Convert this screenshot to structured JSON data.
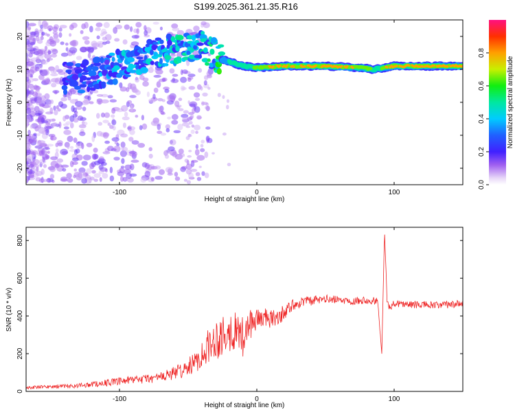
{
  "title": "S199.2025.361.21.35.R16",
  "chart_data": [
    {
      "type": "heatmap",
      "xlabel": "Height of straight line (km)",
      "ylabel": "Frequency (Hz)",
      "xlim": [
        -168,
        150
      ],
      "ylim": [
        -25,
        25
      ],
      "xticks": [
        -100,
        0,
        100
      ],
      "yticks": [
        -20,
        -10,
        0,
        10,
        20
      ],
      "colorbar": {
        "label": "Normalized spectral amplitude",
        "range": [
          0,
          1
        ],
        "ticks": [
          0.0,
          0.2,
          0.4,
          0.6,
          0.8
        ],
        "tick_labels": [
          "0.0",
          "0.2",
          "0.4",
          "0.6",
          "0.8"
        ]
      },
      "ridge": [
        {
          "x": -140,
          "y": 7,
          "a": 0.2
        },
        {
          "x": -120,
          "y": 8,
          "a": 0.25
        },
        {
          "x": -100,
          "y": 11,
          "a": 0.3
        },
        {
          "x": -80,
          "y": 14,
          "a": 0.3
        },
        {
          "x": -60,
          "y": 16,
          "a": 0.35
        },
        {
          "x": -40,
          "y": 17,
          "a": 0.35
        },
        {
          "x": -25,
          "y": 13,
          "a": 0.45
        },
        {
          "x": -10,
          "y": 11,
          "a": 0.6
        },
        {
          "x": 0,
          "y": 10.5,
          "a": 0.7
        },
        {
          "x": 20,
          "y": 11,
          "a": 0.85
        },
        {
          "x": 50,
          "y": 11,
          "a": 0.9
        },
        {
          "x": 75,
          "y": 10.5,
          "a": 0.85
        },
        {
          "x": 85,
          "y": 10,
          "a": 0.6
        },
        {
          "x": 100,
          "y": 11,
          "a": 0.85
        },
        {
          "x": 130,
          "y": 11,
          "a": 0.9
        },
        {
          "x": 150,
          "y": 11,
          "a": 0.9
        }
      ]
    },
    {
      "type": "line",
      "xlabel": "Height of straight line (km)",
      "ylabel": "SNR (10 * v/v)",
      "xlim": [
        -168,
        150
      ],
      "ylim": [
        0,
        870
      ],
      "xticks": [
        -100,
        0,
        100
      ],
      "yticks": [
        0,
        200,
        400,
        600,
        800
      ],
      "series": [
        {
          "name": "SNR",
          "color": "#ee2222",
          "x": [
            -168,
            -150,
            -130,
            -110,
            -90,
            -70,
            -55,
            -45,
            -38,
            -30,
            -25,
            -20,
            -15,
            -10,
            -5,
            0,
            5,
            10,
            15,
            20,
            25,
            30,
            40,
            50,
            60,
            70,
            80,
            88,
            91,
            93,
            95,
            97,
            100,
            110,
            120,
            130,
            140,
            150
          ],
          "y": [
            20,
            25,
            30,
            45,
            60,
            75,
            110,
            150,
            220,
            280,
            300,
            320,
            320,
            300,
            350,
            390,
            390,
            380,
            390,
            420,
            450,
            470,
            480,
            490,
            485,
            480,
            485,
            480,
            200,
            850,
            460,
            440,
            470,
            460,
            460,
            455,
            460,
            465
          ],
          "noise": [
            8,
            10,
            12,
            18,
            22,
            28,
            40,
            55,
            80,
            110,
            120,
            110,
            100,
            90,
            80,
            60,
            55,
            50,
            45,
            40,
            35,
            30,
            25,
            22,
            20,
            20,
            20,
            20,
            0,
            0,
            20,
            20,
            20,
            20,
            20,
            20,
            20,
            20
          ]
        }
      ]
    }
  ]
}
